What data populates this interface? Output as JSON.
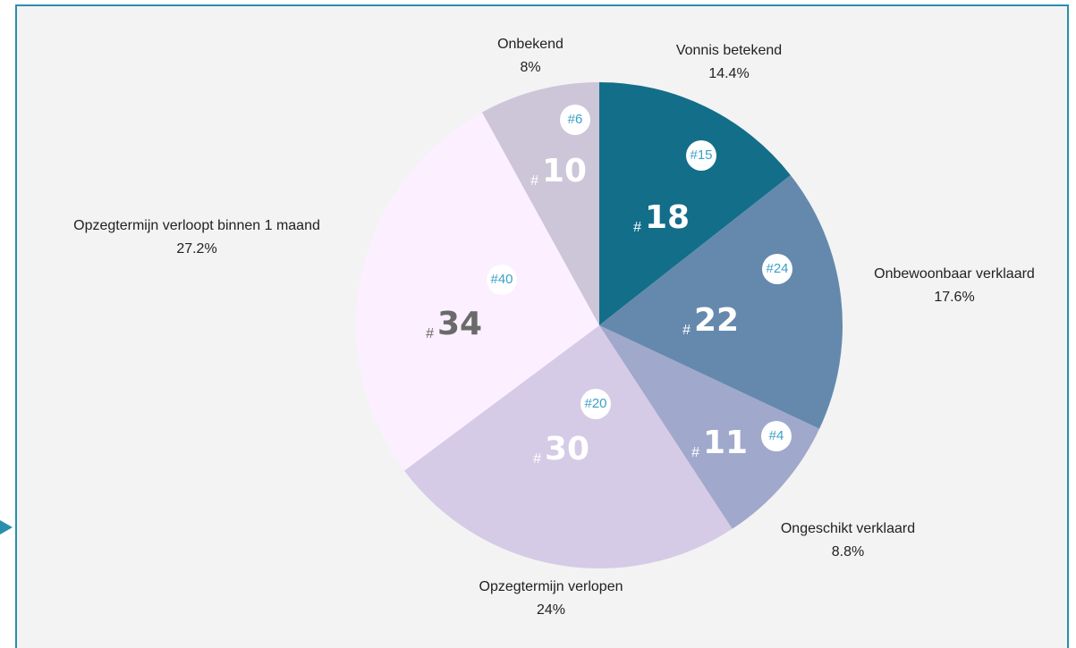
{
  "chart_data": {
    "type": "pie",
    "categories": [
      "Vonnis betekend",
      "Onbewoonbaar verklaard",
      "Ongeschikt verklaard",
      "Opzegtermijn verlopen",
      "Opzegtermijn verloopt binnen 1 maand",
      "Onbekend"
    ],
    "values": [
      14.4,
      17.6,
      8.8,
      24,
      27.2,
      8
    ],
    "value_labels": [
      "14.4%",
      "17.6%",
      "8.8%",
      "24%",
      "27.2%",
      "8%"
    ],
    "counts": [
      18,
      22,
      11,
      30,
      34,
      10
    ],
    "count_prefix": "#",
    "badges": [
      "#15",
      "#24",
      "#4",
      "#20",
      "#40",
      "#6"
    ],
    "colors": [
      "#136e8a",
      "#6589ad",
      "#a0a8cc",
      "#d5cbe6",
      "#fcefff",
      "#cdc5d8"
    ],
    "count_colors": [
      "#ffffff",
      "#ffffff",
      "#ffffff",
      "#ffffff",
      "#6a6a6a",
      "#ffffff"
    ]
  }
}
